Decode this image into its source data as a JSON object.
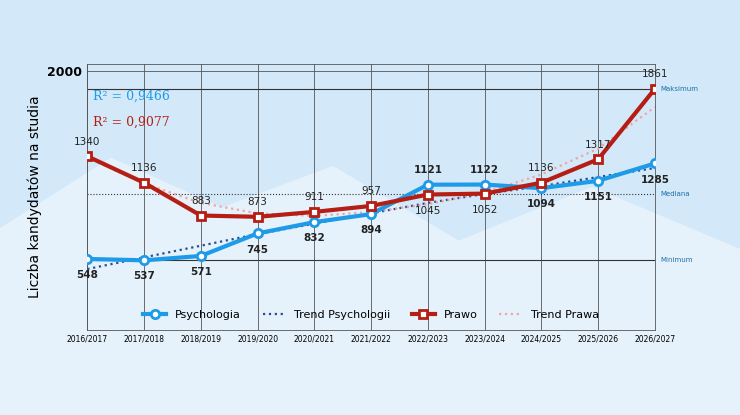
{
  "chart_data": {
    "type": "line",
    "y_label": "Liczba kandydatów na studia",
    "categories": [
      "2016/2017",
      "2017/2018",
      "2018/2019",
      "2019/2020",
      "2020/2021",
      "2021/2022",
      "2022/2023",
      "2023/2024",
      "2024/2025",
      "2025/2026",
      "2026/2027"
    ],
    "series": [
      {
        "name": "Psychologia",
        "color": "#1e9be8",
        "marker": "circle",
        "line_style": "solid",
        "data_labels": true,
        "values": [
          548,
          537,
          571,
          745,
          832,
          894,
          1121,
          1122,
          1094,
          1151,
          1285
        ]
      },
      {
        "name": "Trend Psychologii",
        "color": "#2a4d8f",
        "marker": "none",
        "line_style": "dotted",
        "data_labels": false,
        "values": [
          470,
          560,
          650,
          740,
          820,
          900,
          980,
          1050,
          1110,
          1180,
          1250
        ]
      },
      {
        "name": "Prawo",
        "color": "#b41e14",
        "marker": "square",
        "line_style": "solid",
        "data_labels": true,
        "values": [
          1340,
          1136,
          883,
          873,
          911,
          957,
          1045,
          1052,
          1136,
          1317,
          1861
        ]
      },
      {
        "name": "Trend Prawa",
        "color": "#f2a3a3",
        "marker": "none",
        "line_style": "dotted",
        "data_labels": false,
        "values": [
          1330,
          1130,
          980,
          900,
          880,
          910,
          970,
          1060,
          1200,
          1400,
          1720
        ]
      }
    ],
    "reference_lines": [
      {
        "label": "Maksimum",
        "value": 1861,
        "line_style": "solid"
      },
      {
        "label": "Mediana",
        "value": 1048.5,
        "line_style": "dotted"
      },
      {
        "label": "Minimum",
        "value": 537,
        "line_style": "solid"
      }
    ],
    "annotations": [
      {
        "text": "R² = 0,9466",
        "color": "#1e9be8"
      },
      {
        "text": "R² = 0,9077",
        "color": "#b41e14"
      }
    ],
    "ylim": [
      0,
      2050
    ],
    "yticks": [
      2000
    ],
    "grid": true,
    "legend": "lower center",
    "data_labels": true
  }
}
